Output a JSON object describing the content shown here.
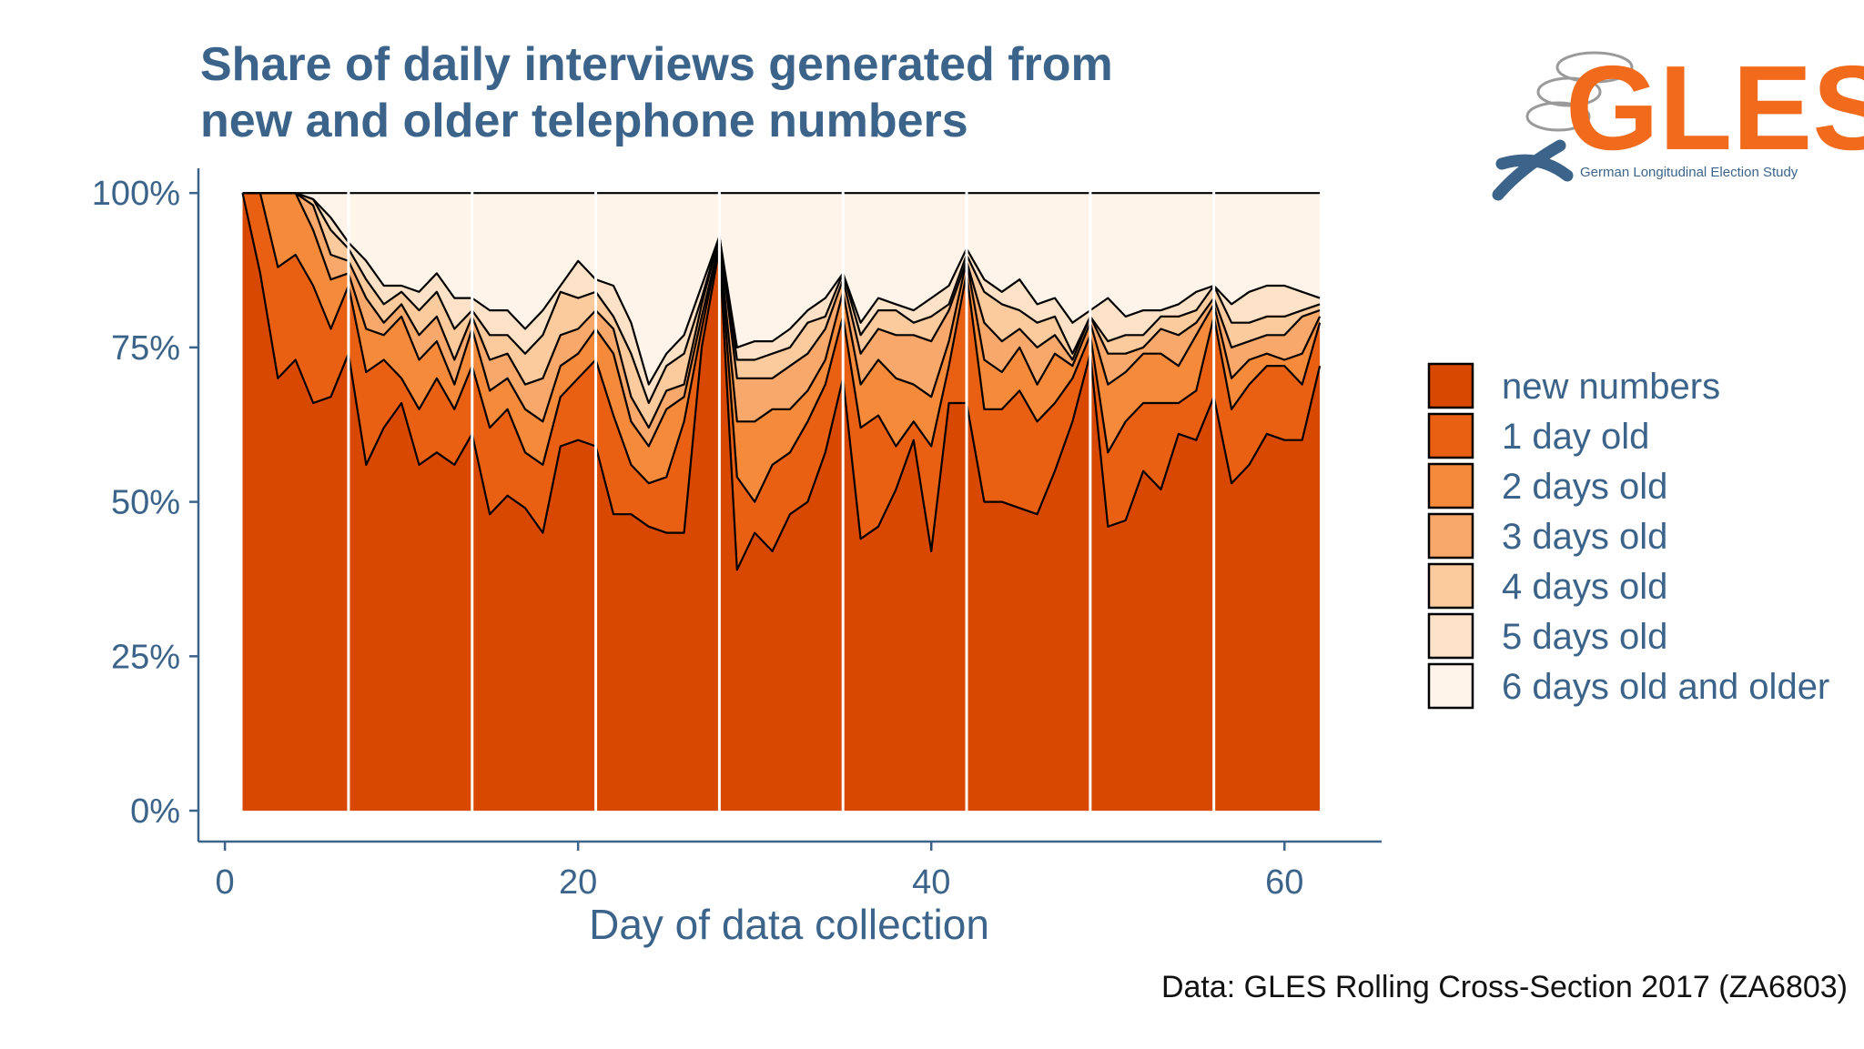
{
  "logo": {
    "name": "GLES",
    "subtitle": "German Longitudinal Election Study"
  },
  "caption": "Data: GLES Rolling Cross-Section 2017 (ZA6803)",
  "colors": {
    "text": "#3c648a",
    "series": [
      "#d84800",
      "#ea6012",
      "#f58a3a",
      "#f8a86a",
      "#fbcb9e",
      "#fde2c8",
      "#fef4ea"
    ]
  },
  "chart_data": {
    "type": "area",
    "stacked": true,
    "title": "Share of daily interviews generated from new and older telephone numbers",
    "title_lines": [
      "Share of daily interviews generated from",
      "new and older telephone numbers"
    ],
    "xlabel": "Day of data collection",
    "ylabel": "",
    "xlim": [
      -1.5,
      65.5
    ],
    "ylim": [
      -5,
      104
    ],
    "x_ticks": [
      0,
      20,
      40,
      60
    ],
    "x_tick_labels": [
      "0",
      "20",
      "40",
      "60"
    ],
    "y_ticks": [
      0,
      25,
      50,
      75,
      100
    ],
    "y_tick_labels": [
      "0%",
      "25%",
      "50%",
      "75%",
      "100%"
    ],
    "grid": false,
    "legend_position": "right",
    "week_separators": [
      7,
      14,
      21,
      28,
      35,
      42,
      49,
      56
    ],
    "x": [
      1,
      2,
      3,
      4,
      5,
      6,
      7,
      8,
      9,
      10,
      11,
      12,
      13,
      14,
      15,
      16,
      17,
      18,
      19,
      20,
      21,
      22,
      23,
      24,
      25,
      26,
      27,
      28,
      29,
      30,
      31,
      32,
      33,
      34,
      35,
      36,
      37,
      38,
      39,
      40,
      41,
      42,
      43,
      44,
      45,
      46,
      47,
      48,
      49,
      50,
      51,
      52,
      53,
      54,
      55,
      56,
      57,
      58,
      59,
      60,
      61,
      62
    ],
    "cumulative": true,
    "series": [
      {
        "name": "new numbers",
        "values": [
          100,
          87,
          70,
          73,
          66,
          67,
          74,
          56,
          62,
          66,
          56,
          58,
          56,
          61,
          48,
          51,
          49,
          45,
          59,
          60,
          59,
          48,
          48,
          46,
          45,
          45,
          75,
          91,
          39,
          45,
          42,
          48,
          50,
          58,
          70,
          44,
          46,
          52,
          60,
          42,
          66,
          66,
          50,
          50,
          49,
          48,
          55,
          63,
          74,
          46,
          47,
          55,
          52,
          61,
          60,
          67,
          53,
          56,
          61,
          60,
          60,
          72
        ]
      },
      {
        "name": "1 day old",
        "values": [
          100,
          100,
          88,
          90,
          85,
          78,
          85,
          71,
          73,
          70,
          65,
          70,
          65,
          72,
          62,
          65,
          58,
          56,
          67,
          70,
          73,
          64,
          56,
          53,
          54,
          63,
          78,
          92,
          54,
          50,
          56,
          58,
          63,
          69,
          80,
          62,
          64,
          59,
          63,
          59,
          72,
          87,
          65,
          65,
          68,
          63,
          66,
          70,
          77,
          58,
          63,
          66,
          66,
          66,
          68,
          80,
          65,
          69,
          72,
          72,
          69,
          79
        ]
      },
      {
        "name": "2 days old",
        "values": [
          100,
          100,
          100,
          100,
          94,
          86,
          87,
          78,
          77,
          80,
          73,
          76,
          69,
          78,
          68,
          70,
          65,
          63,
          72,
          74,
          78,
          74,
          63,
          59,
          65,
          67,
          80,
          92,
          63,
          63,
          65,
          65,
          68,
          73,
          84,
          69,
          73,
          70,
          69,
          67,
          76,
          89,
          73,
          71,
          75,
          69,
          74,
          72,
          79,
          69,
          71,
          74,
          74,
          72,
          77,
          82,
          70,
          73,
          74,
          73,
          74,
          80
        ]
      },
      {
        "name": "3 days old",
        "values": [
          100,
          100,
          100,
          100,
          98,
          90,
          89,
          83,
          79,
          82,
          77,
          80,
          73,
          80,
          73,
          74,
          69,
          70,
          77,
          78,
          81,
          78,
          67,
          62,
          68,
          69,
          82,
          93,
          70,
          70,
          70,
          72,
          74,
          78,
          86,
          74,
          78,
          77,
          77,
          76,
          81,
          89,
          79,
          76,
          78,
          75,
          77,
          73,
          80,
          74,
          74,
          75,
          78,
          77,
          79,
          83,
          75,
          76,
          77,
          77,
          80,
          81
        ]
      },
      {
        "name": "4 days old",
        "values": [
          100,
          100,
          100,
          100,
          99,
          94,
          91,
          86,
          82,
          84,
          81,
          84,
          78,
          81,
          77,
          77,
          74,
          77,
          84,
          83,
          84,
          80,
          74,
          66,
          72,
          74,
          83,
          93,
          73,
          73,
          74,
          75,
          79,
          80,
          87,
          77,
          81,
          81,
          79,
          80,
          82,
          90,
          84,
          82,
          81,
          79,
          80,
          74,
          80,
          76,
          77,
          77,
          80,
          80,
          81,
          85,
          79,
          79,
          80,
          80,
          81,
          82
        ]
      },
      {
        "name": "5 days old",
        "values": [
          100,
          100,
          100,
          100,
          99,
          96,
          92,
          89,
          85,
          85,
          84,
          87,
          83,
          83,
          81,
          81,
          78,
          81,
          85,
          89,
          86,
          85,
          79,
          69,
          74,
          77,
          85,
          93,
          75,
          76,
          76,
          78,
          81,
          83,
          87,
          79,
          83,
          82,
          81,
          83,
          85,
          91,
          86,
          84,
          86,
          82,
          83,
          79,
          81,
          83,
          80,
          81,
          81,
          82,
          84,
          85,
          82,
          84,
          85,
          85,
          84,
          83
        ]
      },
      {
        "name": "6 days old and older",
        "values": [
          100,
          100,
          100,
          100,
          100,
          100,
          100,
          100,
          100,
          100,
          100,
          100,
          100,
          100,
          100,
          100,
          100,
          100,
          100,
          100,
          100,
          100,
          100,
          100,
          100,
          100,
          100,
          100,
          100,
          100,
          100,
          100,
          100,
          100,
          100,
          100,
          100,
          100,
          100,
          100,
          100,
          100,
          100,
          100,
          100,
          100,
          100,
          100,
          100,
          100,
          100,
          100,
          100,
          100,
          100,
          100,
          100,
          100,
          100,
          100,
          100,
          100
        ]
      }
    ]
  }
}
